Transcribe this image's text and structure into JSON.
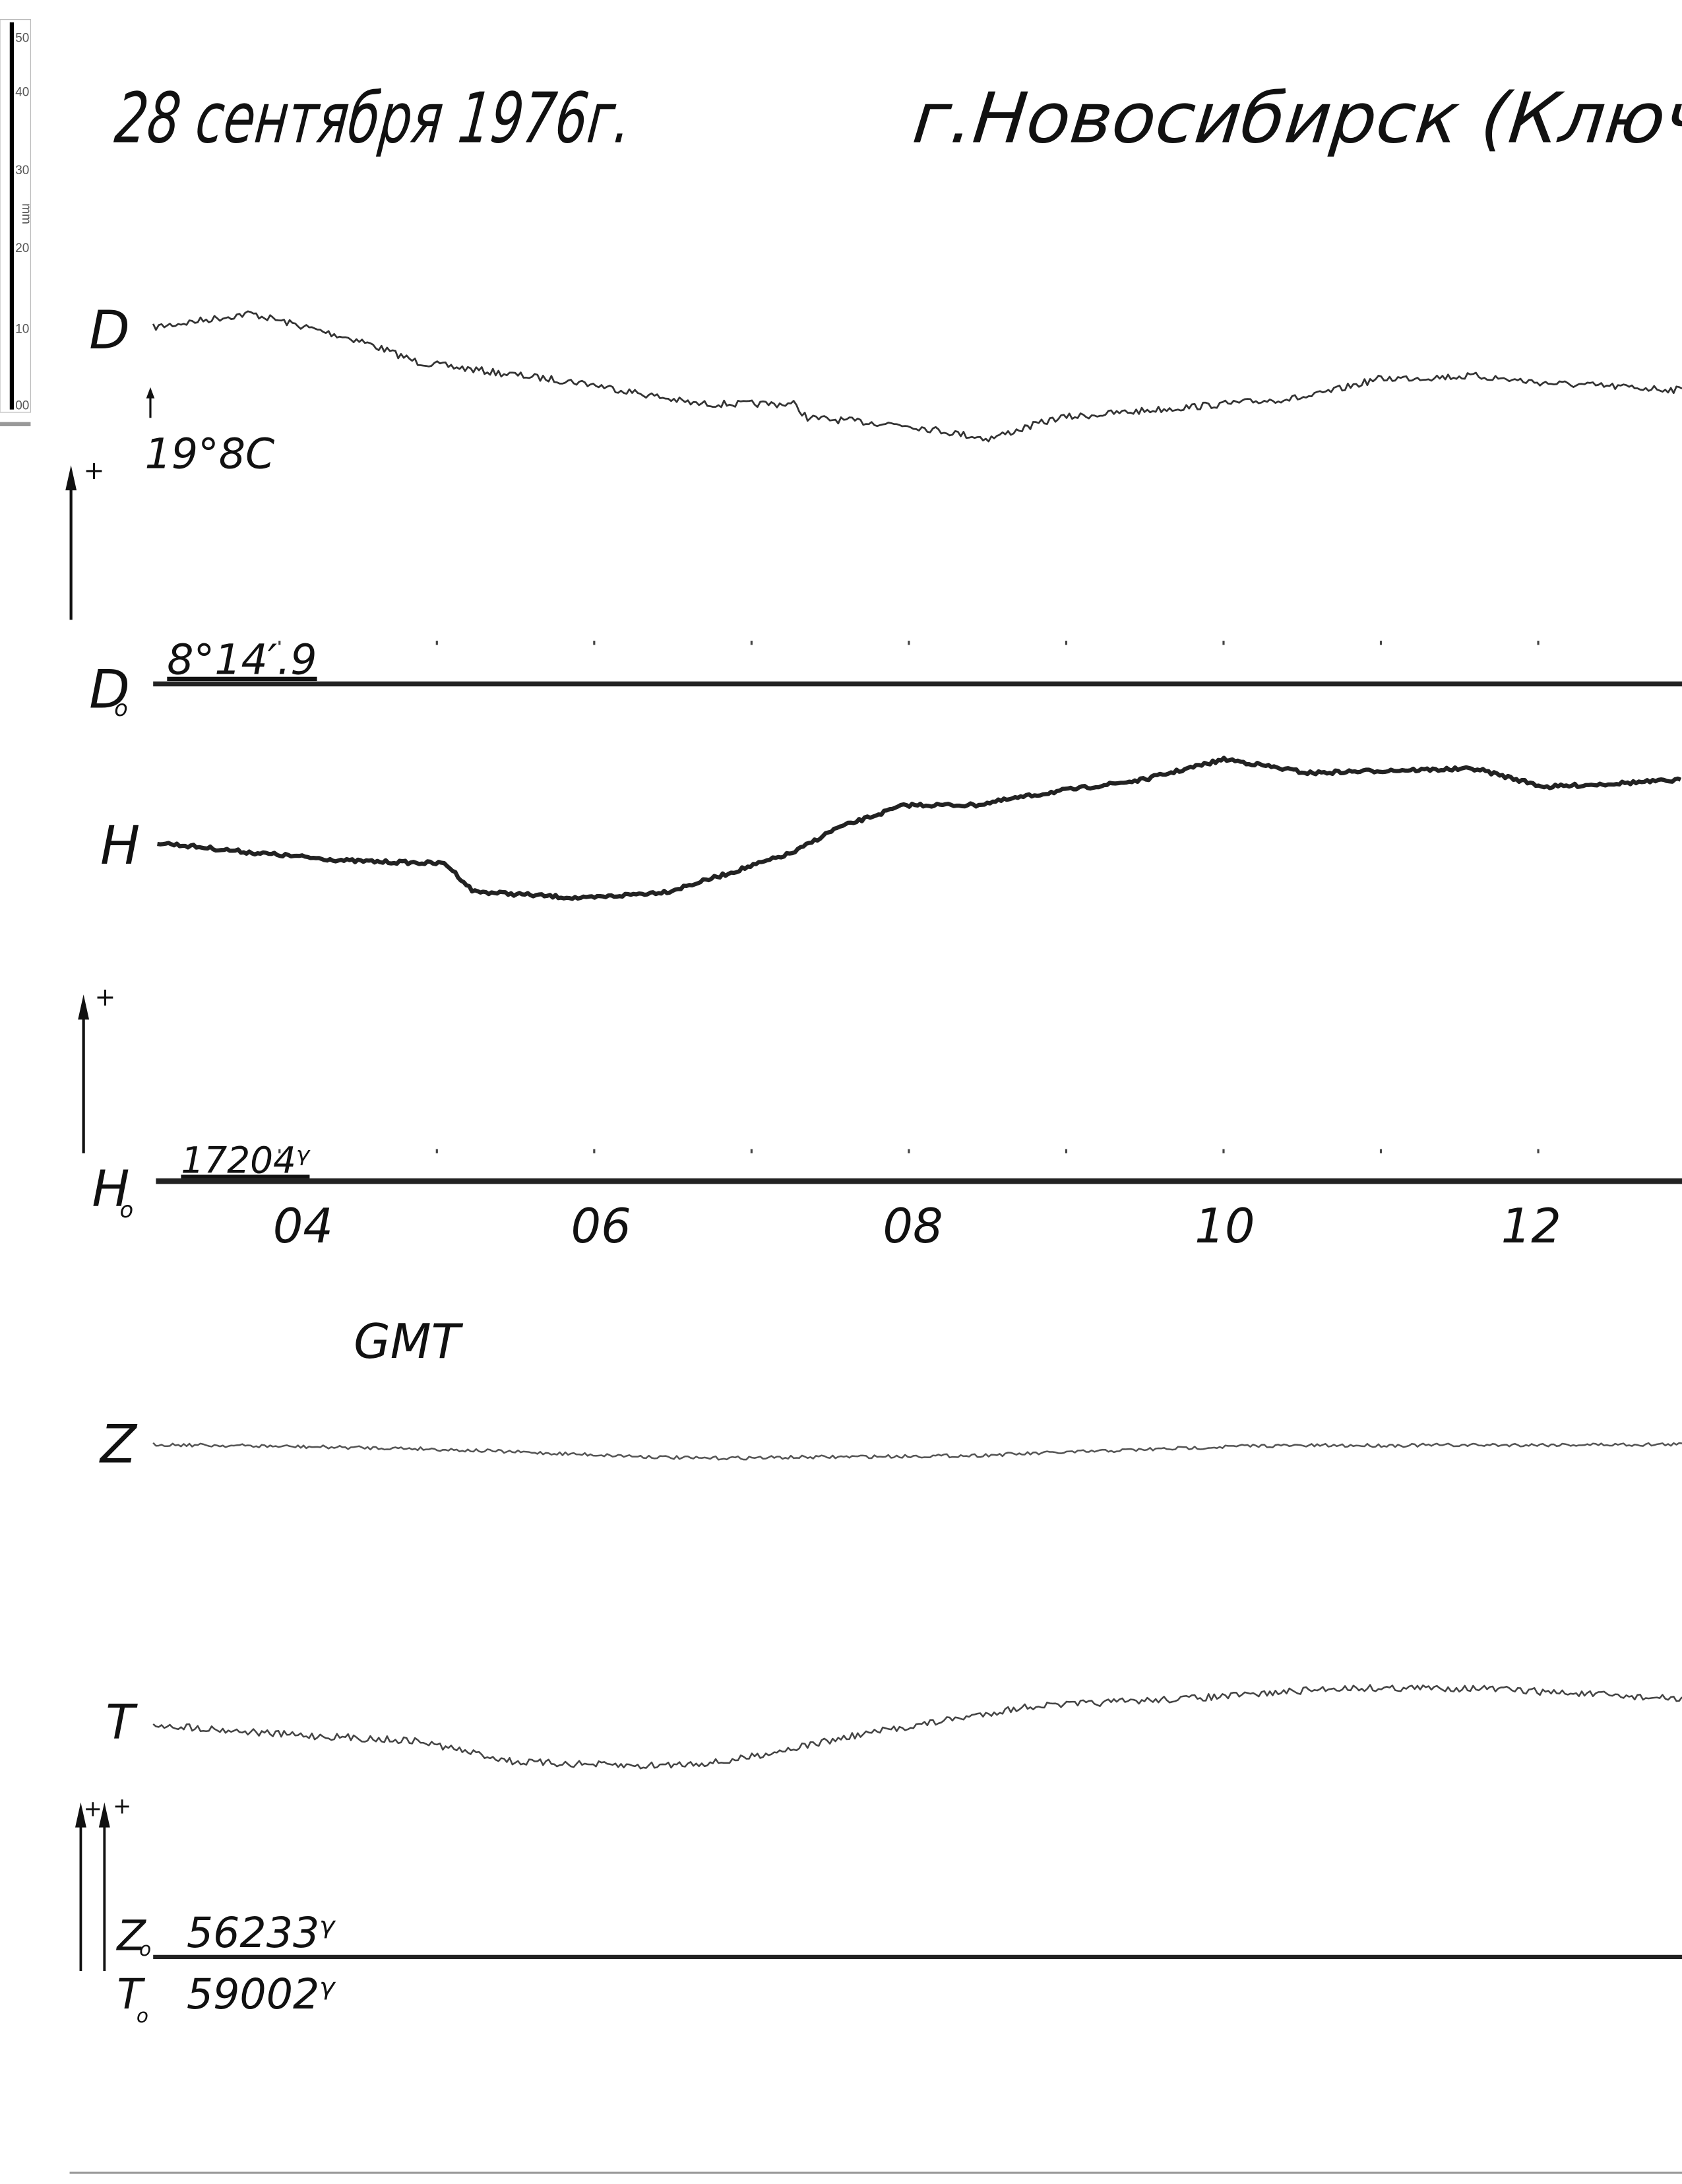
{
  "header": {
    "date": "28 сентября 1976г.",
    "place": "г.Новосибирск (Ключ"
  },
  "ruler": {
    "labels": [
      "50",
      "40",
      "30",
      "20",
      "10",
      "00"
    ],
    "unit": "mm"
  },
  "temperature": "19°8C",
  "polarity": "+",
  "traces": [
    {
      "label": "D"
    },
    {
      "label": "H"
    },
    {
      "label": "Z"
    },
    {
      "label": "T"
    }
  ],
  "baselines": [
    {
      "label": "D",
      "sub": "o",
      "value": "8°14′.9"
    },
    {
      "label": "H",
      "sub": "o",
      "value": "17204ᵞ"
    },
    {
      "label": "Z",
      "sub": "o",
      "value": "56233ᵞ"
    },
    {
      "label": "T",
      "sub": "o",
      "value": "59002ᵞ"
    }
  ],
  "time_axis": {
    "labels": [
      "04",
      "06",
      "08",
      "10",
      "12"
    ],
    "unit": "GMT"
  }
}
